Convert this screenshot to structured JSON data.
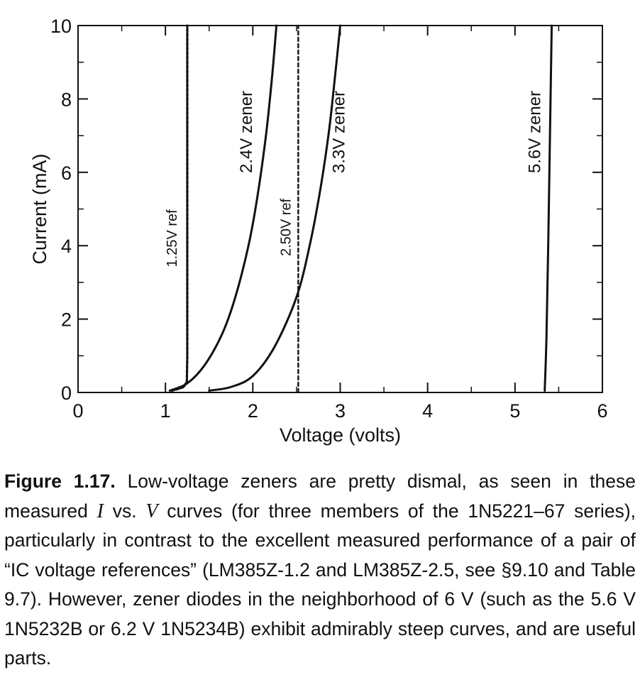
{
  "chart_data": {
    "type": "line",
    "xlabel": "Voltage (volts)",
    "ylabel": "Current (mA)",
    "xlim": [
      0,
      6
    ],
    "ylim": [
      0,
      10
    ],
    "xticks": [
      0,
      1,
      2,
      3,
      4,
      5,
      6
    ],
    "yticks": [
      0,
      2,
      4,
      6,
      8,
      10
    ],
    "grid": false,
    "series": [
      {
        "name": "1.25V ref",
        "style": "dashed",
        "x": [
          1.07,
          1.15,
          1.21,
          1.245,
          1.25,
          1.25,
          1.25,
          1.25,
          1.25
        ],
        "y": [
          0.05,
          0.1,
          0.15,
          0.3,
          1,
          2,
          4,
          6,
          10
        ]
      },
      {
        "name": "2.4V zener",
        "style": "solid",
        "x": [
          1.05,
          1.25,
          1.45,
          1.65,
          1.8,
          1.95,
          2.05,
          2.15,
          2.22,
          2.27
        ],
        "y": [
          0.05,
          0.25,
          0.75,
          1.6,
          2.6,
          4.0,
          5.3,
          7.0,
          8.6,
          10
        ]
      },
      {
        "name": "2.50V ref",
        "style": "dashed",
        "x": [
          2.52,
          2.52,
          2.52,
          2.52,
          2.52
        ],
        "y": [
          0,
          2,
          4,
          6,
          10
        ]
      },
      {
        "name": "3.3V zener",
        "style": "solid",
        "x": [
          1.5,
          1.75,
          2.0,
          2.25,
          2.5,
          2.65,
          2.77,
          2.87,
          2.94,
          3.0
        ],
        "y": [
          0.05,
          0.15,
          0.45,
          1.25,
          2.6,
          4.0,
          5.5,
          7.1,
          8.6,
          10
        ]
      },
      {
        "name": "5.6V zener",
        "style": "solid",
        "x": [
          5.34,
          5.36,
          5.38,
          5.4,
          5.42
        ],
        "y": [
          0.05,
          1.5,
          4.0,
          7.0,
          10
        ]
      }
    ]
  },
  "caption": {
    "figure_number": "Figure 1.17.",
    "text_1": " Low-voltage zeners are pretty dismal, as seen in these measured ",
    "var_i": "I",
    "text_vs": " vs. ",
    "var_v": "V",
    "text_2": " curves (for three members of the 1N5221–67 series), particularly in contrast to the excellent measured performance of a pair of “IC voltage references” (LM385Z-1.2 and LM385Z-2.5, see §9.10 and Table 9.7). However, zener diodes in the neighborhood of 6 V (such as the 5.6 V 1N5232B or 6.2 V 1N5234B) exhibit admirably steep curves, and are useful parts."
  }
}
